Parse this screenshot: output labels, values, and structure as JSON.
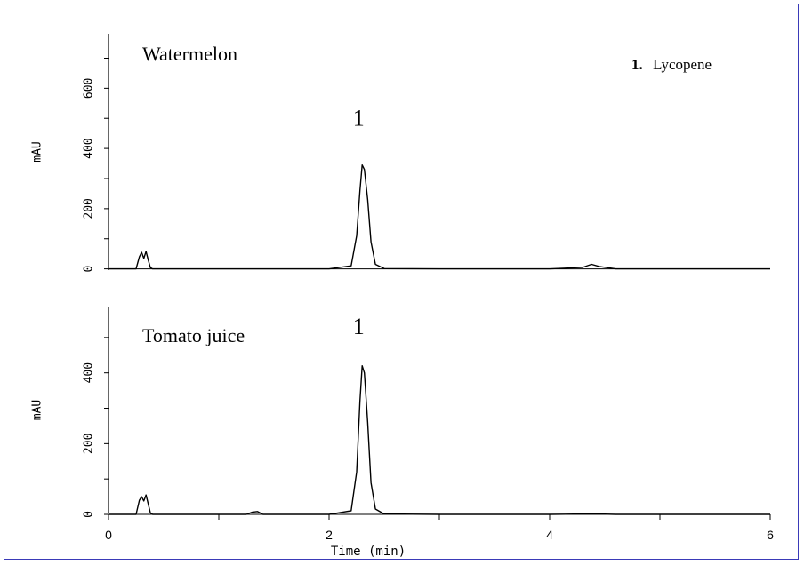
{
  "legend": {
    "number": "1.",
    "name": "Lycopene"
  },
  "chart_data": [
    {
      "type": "line",
      "title": "Watermelon",
      "ylabel": "mAU",
      "xlabel": "",
      "xlim": [
        0,
        6
      ],
      "ylim": [
        -10,
        790
      ],
      "yticks": [
        0,
        200,
        400,
        600
      ],
      "grid": false,
      "peak_labels": [
        {
          "x": 2.3,
          "y": 475,
          "text": "1"
        }
      ],
      "series": [
        {
          "x": [
            0.0,
            0.25,
            0.28,
            0.3,
            0.32,
            0.34,
            0.36,
            0.38,
            0.4,
            0.5,
            1.0,
            1.5,
            2.0,
            2.2,
            2.25,
            2.28,
            2.3,
            2.32,
            2.35,
            2.38,
            2.42,
            2.5,
            3.0,
            3.5,
            4.0,
            4.3,
            4.38,
            4.45,
            4.6,
            5.0,
            6.0
          ],
          "y": [
            0,
            0,
            40,
            55,
            35,
            58,
            30,
            4,
            0,
            0,
            0,
            0,
            0,
            10,
            110,
            260,
            345,
            330,
            230,
            90,
            15,
            1,
            0,
            0,
            0,
            5,
            15,
            8,
            0,
            0,
            0
          ]
        }
      ]
    },
    {
      "type": "line",
      "title": "Tomato juice",
      "ylabel": "mAU",
      "xlabel": "Time (min)",
      "xlim": [
        0,
        6
      ],
      "xticks": [
        0,
        2,
        4,
        6
      ],
      "ylim": [
        -10,
        590
      ],
      "yticks": [
        0,
        200,
        400
      ],
      "grid": false,
      "peak_labels": [
        {
          "x": 2.3,
          "y": 510,
          "text": "1"
        }
      ],
      "series": [
        {
          "x": [
            0.0,
            0.25,
            0.28,
            0.3,
            0.32,
            0.34,
            0.36,
            0.38,
            0.4,
            0.5,
            1.0,
            1.25,
            1.3,
            1.35,
            1.4,
            2.0,
            2.2,
            2.25,
            2.28,
            2.3,
            2.32,
            2.35,
            2.38,
            2.42,
            2.5,
            3.0,
            4.0,
            4.3,
            4.38,
            4.45,
            4.6,
            5.0,
            6.0
          ],
          "y": [
            0,
            0,
            40,
            50,
            38,
            55,
            30,
            4,
            0,
            0,
            0,
            0,
            6,
            8,
            0,
            0,
            10,
            120,
            320,
            420,
            400,
            260,
            90,
            15,
            1,
            0,
            0,
            1,
            3,
            1,
            0,
            0,
            0
          ]
        }
      ]
    }
  ]
}
